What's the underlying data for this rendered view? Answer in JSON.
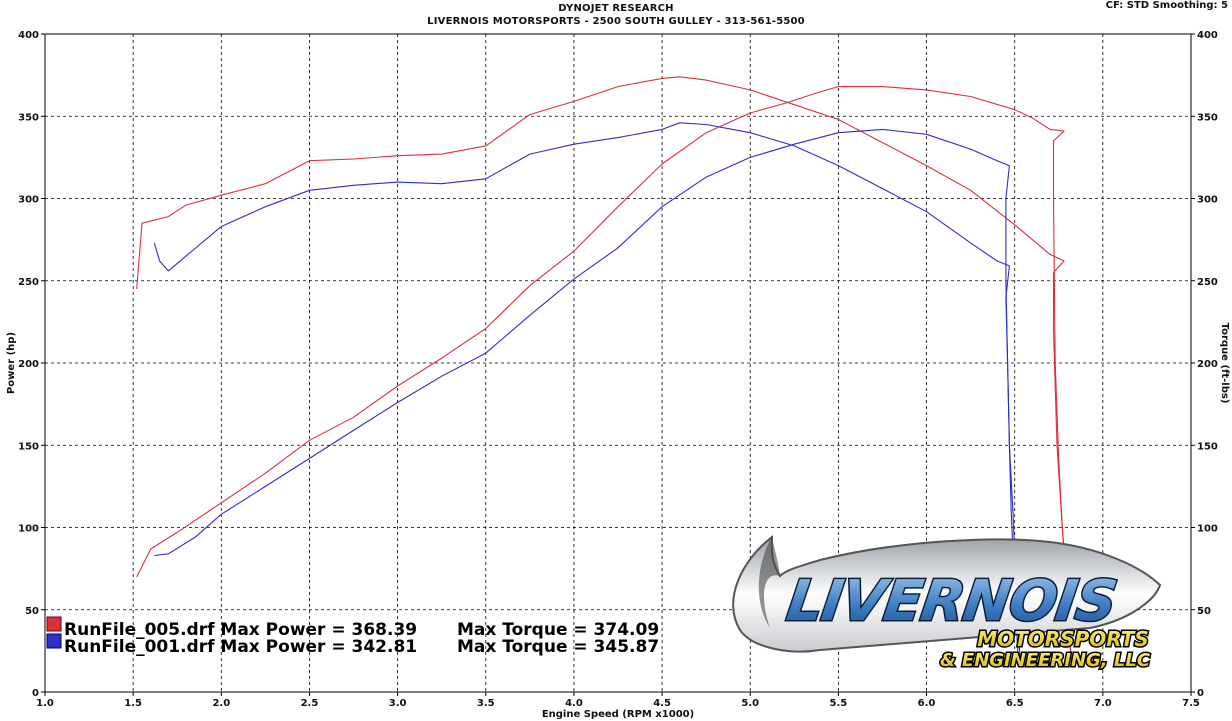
{
  "header": {
    "line1": "DYNOJET RESEARCH",
    "line2": "LIVERNOIS MOTORSPORTS - 2500 SOUTH GULLEY - 313-561-5500",
    "cf": "CF: STD  Smoothing: 5"
  },
  "logo": {
    "brand": "LIVERNOIS",
    "tag1": "MOTORSPORTS",
    "tag2": "& ENGINEERING, LLC"
  },
  "colors": {
    "run005": "#d9303e",
    "run001": "#2e2ec8",
    "grid": "#000000"
  },
  "chart_data": {
    "type": "line",
    "xlabel": "Engine Speed (RPM x1000)",
    "ylabel": "Power (hp)",
    "y2label": "Torque (ft-lbs)",
    "xlim": [
      1.0,
      7.5
    ],
    "ylim": [
      0,
      400
    ],
    "y2lim": [
      0,
      400
    ],
    "x_ticks": [
      "1.0",
      "1.5",
      "2.0",
      "2.5",
      "3.0",
      "3.5",
      "4.0",
      "4.5",
      "5.0",
      "5.5",
      "6.0",
      "6.5",
      "7.0",
      "7.5"
    ],
    "y_ticks": [
      "0",
      "50",
      "100",
      "150",
      "200",
      "250",
      "300",
      "350",
      "400"
    ],
    "grid": true,
    "legend": [
      {
        "label": "RunFile_005.drf Max Power = 368.39",
        "torque": "Max Torque = 374.09",
        "color": "#d9303e"
      },
      {
        "label": "RunFile_001.drf Max Power = 342.81",
        "torque": "Max Torque = 345.87",
        "color": "#2e2ec8"
      }
    ],
    "series": [
      {
        "run": "RunFile_005",
        "quantity": "power",
        "color": "#d9303e",
        "points": [
          [
            1.52,
            70
          ],
          [
            1.6,
            87
          ],
          [
            1.75,
            97
          ],
          [
            2.0,
            115
          ],
          [
            2.25,
            133
          ],
          [
            2.5,
            153
          ],
          [
            2.75,
            167
          ],
          [
            3.0,
            186
          ],
          [
            3.25,
            203
          ],
          [
            3.5,
            221
          ],
          [
            3.75,
            247
          ],
          [
            4.0,
            268
          ],
          [
            4.25,
            295
          ],
          [
            4.5,
            321
          ],
          [
            4.75,
            340
          ],
          [
            5.0,
            352
          ],
          [
            5.2,
            358
          ],
          [
            5.4,
            365
          ],
          [
            5.5,
            368
          ],
          [
            5.75,
            368
          ],
          [
            6.0,
            366
          ],
          [
            6.25,
            362
          ],
          [
            6.5,
            354
          ],
          [
            6.6,
            349
          ],
          [
            6.7,
            342
          ],
          [
            6.78,
            341
          ],
          [
            6.72,
            335
          ],
          [
            6.72,
            300
          ],
          [
            6.73,
            200
          ],
          [
            6.75,
            140
          ],
          [
            6.77,
            100
          ],
          [
            6.8,
            50
          ],
          [
            6.82,
            20
          ]
        ]
      },
      {
        "run": "RunFile_005",
        "quantity": "torque",
        "color": "#d9303e",
        "points": [
          [
            1.52,
            245
          ],
          [
            1.55,
            285
          ],
          [
            1.7,
            289
          ],
          [
            1.8,
            296
          ],
          [
            2.0,
            302
          ],
          [
            2.25,
            309
          ],
          [
            2.5,
            323
          ],
          [
            2.75,
            324
          ],
          [
            3.0,
            326
          ],
          [
            3.25,
            327
          ],
          [
            3.5,
            332
          ],
          [
            3.75,
            351
          ],
          [
            4.0,
            359
          ],
          [
            4.25,
            368
          ],
          [
            4.5,
            373
          ],
          [
            4.6,
            374
          ],
          [
            4.75,
            372
          ],
          [
            5.0,
            366
          ],
          [
            5.25,
            357
          ],
          [
            5.5,
            348
          ],
          [
            5.75,
            334
          ],
          [
            6.0,
            320
          ],
          [
            6.25,
            305
          ],
          [
            6.5,
            284
          ],
          [
            6.6,
            275
          ],
          [
            6.7,
            266
          ],
          [
            6.78,
            262
          ],
          [
            6.72,
            255
          ],
          [
            6.72,
            220
          ],
          [
            6.74,
            150
          ],
          [
            6.77,
            100
          ],
          [
            6.8,
            60
          ],
          [
            6.82,
            20
          ]
        ]
      },
      {
        "run": "RunFile_001",
        "quantity": "power",
        "color": "#2e2ec8",
        "points": [
          [
            1.62,
            83
          ],
          [
            1.7,
            84
          ],
          [
            1.85,
            94
          ],
          [
            2.0,
            108
          ],
          [
            2.25,
            125
          ],
          [
            2.5,
            142
          ],
          [
            2.75,
            159
          ],
          [
            3.0,
            176
          ],
          [
            3.25,
            192
          ],
          [
            3.5,
            206
          ],
          [
            3.75,
            229
          ],
          [
            4.0,
            251
          ],
          [
            4.25,
            270
          ],
          [
            4.5,
            295
          ],
          [
            4.75,
            313
          ],
          [
            5.0,
            325
          ],
          [
            5.25,
            333
          ],
          [
            5.5,
            340
          ],
          [
            5.75,
            342
          ],
          [
            6.0,
            339
          ],
          [
            6.25,
            330
          ],
          [
            6.4,
            323
          ],
          [
            6.47,
            320
          ],
          [
            6.45,
            300
          ],
          [
            6.45,
            250
          ],
          [
            6.46,
            200
          ],
          [
            6.47,
            150
          ],
          [
            6.48,
            110
          ],
          [
            6.5,
            60
          ],
          [
            6.52,
            20
          ]
        ]
      },
      {
        "run": "RunFile_001",
        "quantity": "torque",
        "color": "#2e2ec8",
        "points": [
          [
            1.62,
            273
          ],
          [
            1.65,
            262
          ],
          [
            1.7,
            256
          ],
          [
            1.8,
            265
          ],
          [
            2.0,
            283
          ],
          [
            2.25,
            295
          ],
          [
            2.5,
            305
          ],
          [
            2.75,
            308
          ],
          [
            3.0,
            310
          ],
          [
            3.25,
            309
          ],
          [
            3.5,
            312
          ],
          [
            3.75,
            327
          ],
          [
            4.0,
            333
          ],
          [
            4.25,
            337
          ],
          [
            4.5,
            342
          ],
          [
            4.6,
            346
          ],
          [
            4.75,
            345
          ],
          [
            5.0,
            340
          ],
          [
            5.25,
            332
          ],
          [
            5.5,
            320
          ],
          [
            5.75,
            306
          ],
          [
            6.0,
            292
          ],
          [
            6.25,
            273
          ],
          [
            6.4,
            262
          ],
          [
            6.47,
            259
          ],
          [
            6.45,
            240
          ],
          [
            6.46,
            200
          ],
          [
            6.47,
            150
          ],
          [
            6.49,
            110
          ],
          [
            6.51,
            60
          ],
          [
            6.53,
            20
          ]
        ]
      }
    ]
  }
}
